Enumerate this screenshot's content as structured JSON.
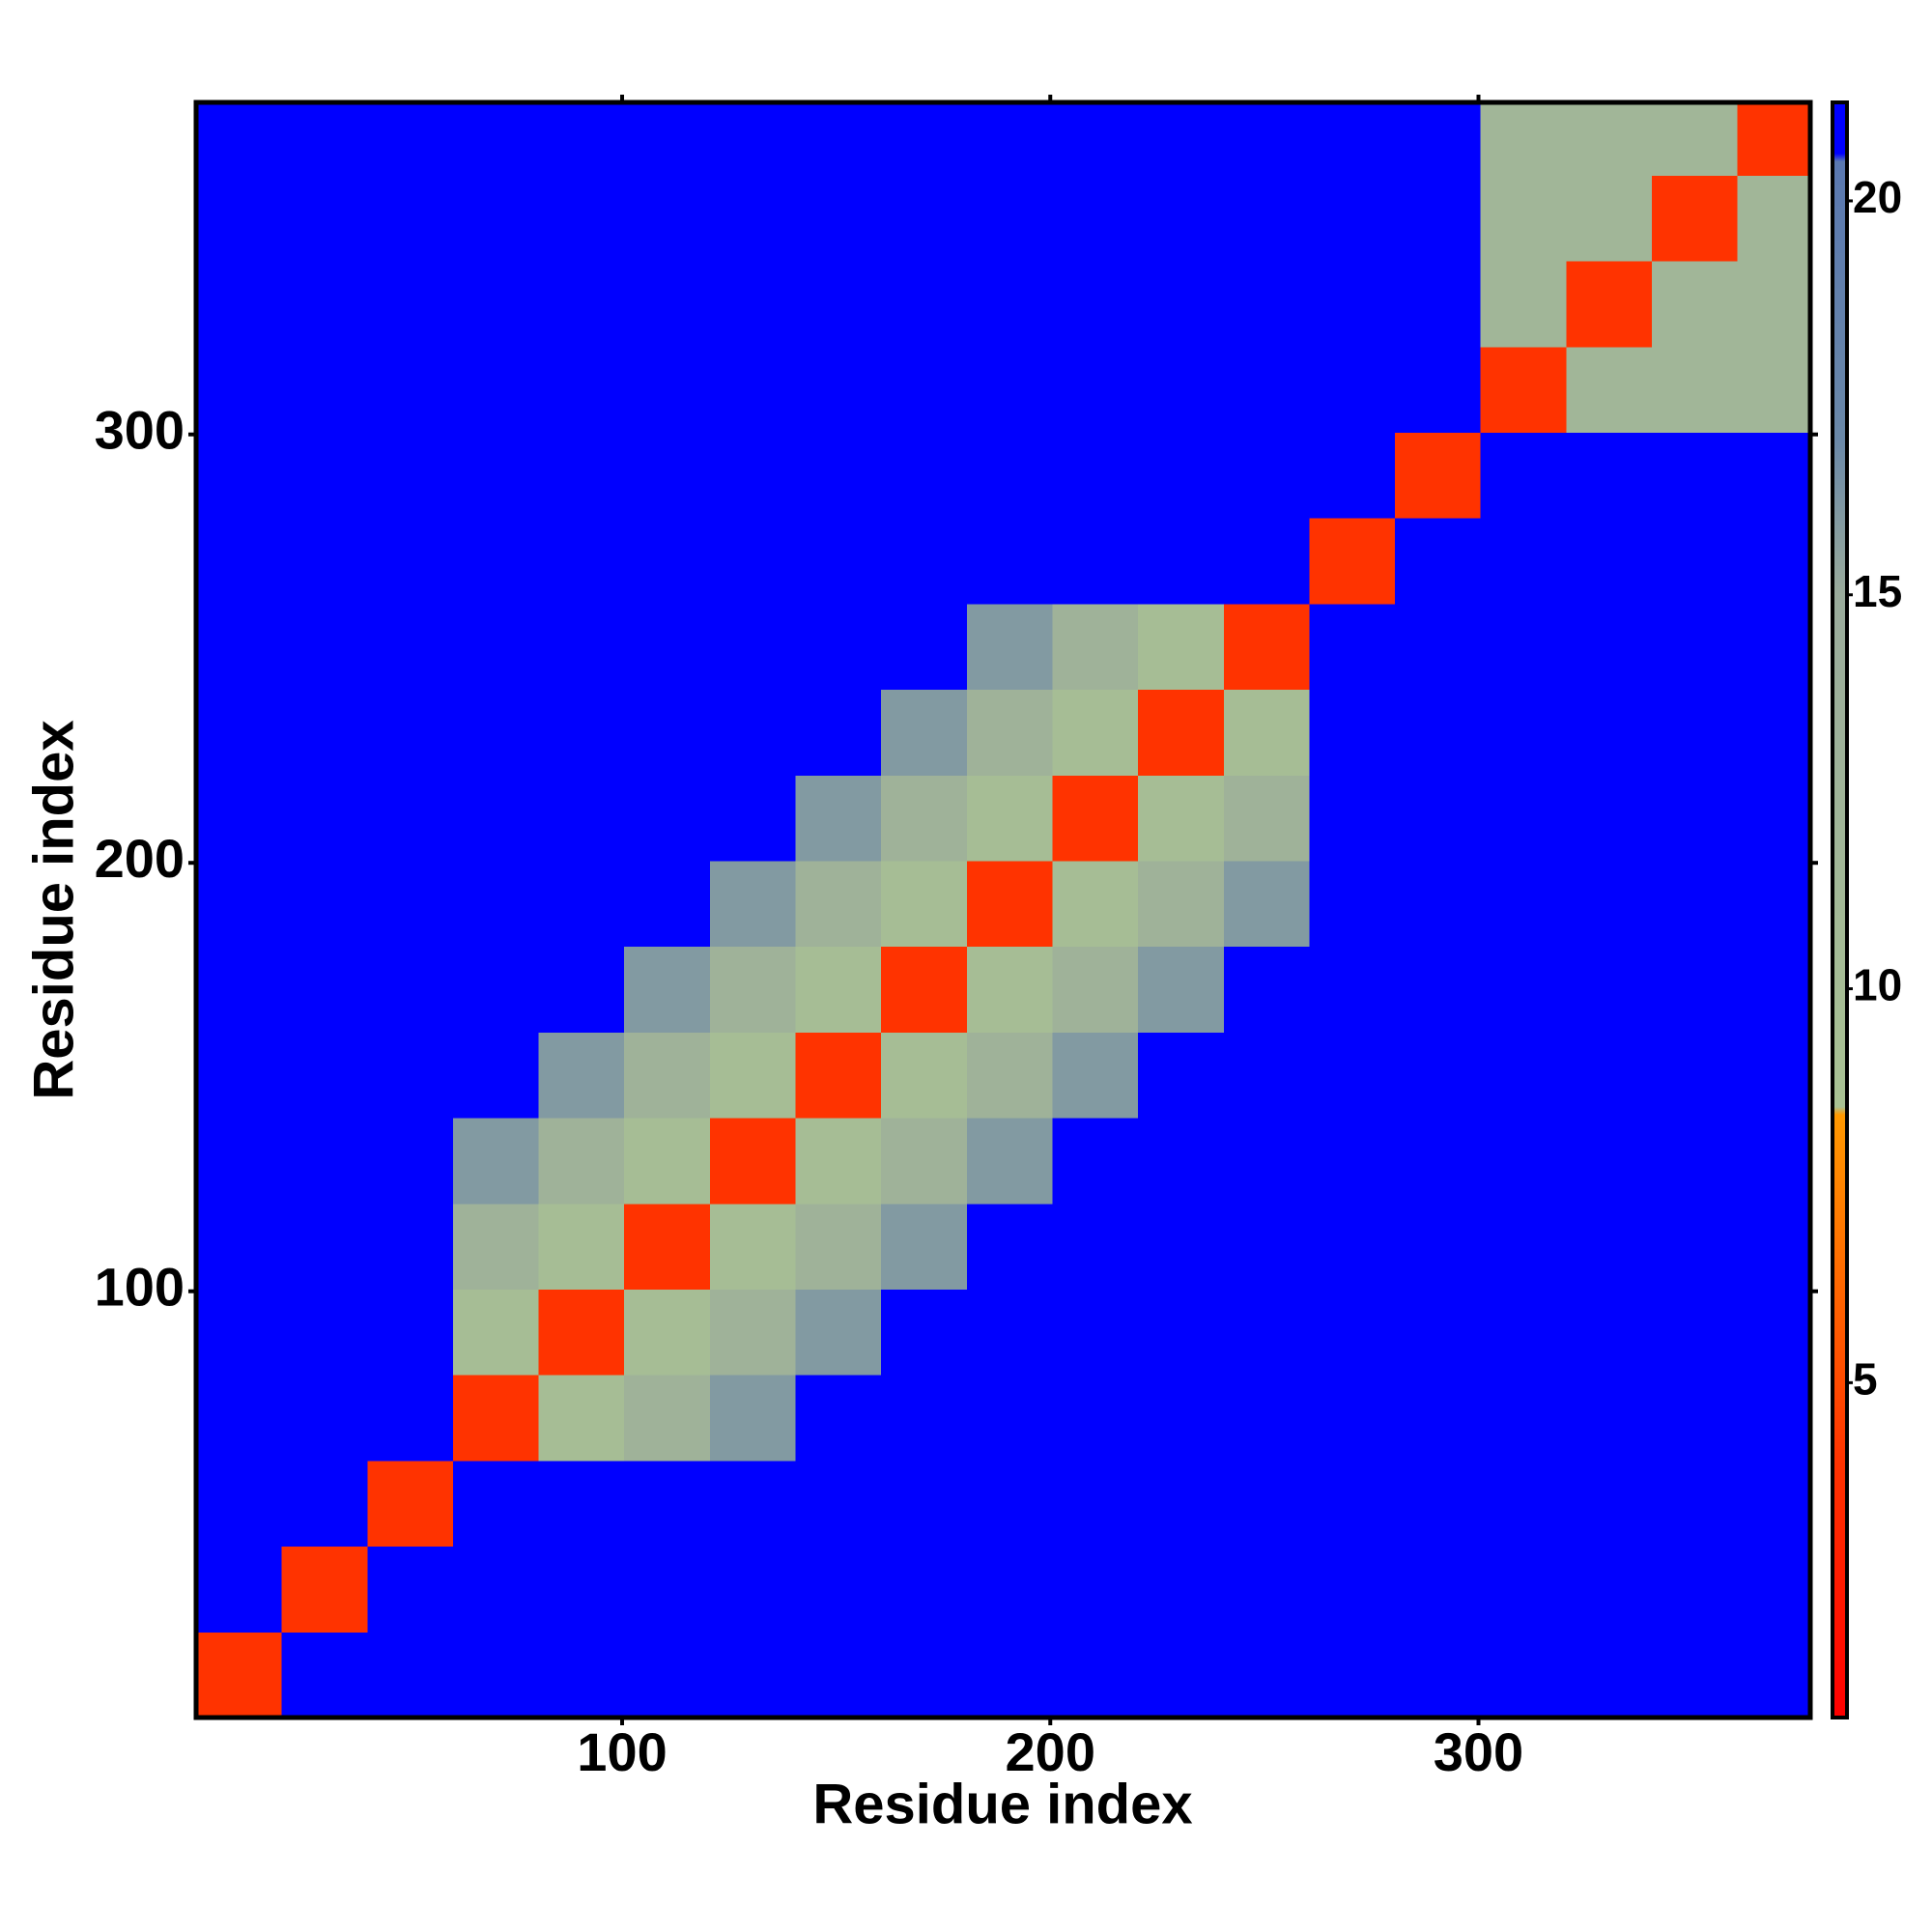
{
  "chart_data": {
    "type": "heatmap",
    "x_label": "Residue index",
    "y_label": "Residue index",
    "bins": [
      0.5,
      20.5,
      40.5,
      60.5,
      80.5,
      100.5,
      120.5,
      140.5,
      160.5,
      180.5,
      200.5,
      220.5,
      240.5,
      260.5,
      280.5,
      300.5,
      320.5,
      340.5,
      360.5,
      377.5
    ],
    "z": [
      [
        4,
        21,
        21,
        21,
        21,
        21,
        21,
        21,
        21,
        21,
        21,
        21,
        21,
        21,
        21,
        21,
        21,
        21,
        21
      ],
      [
        21,
        4,
        21,
        21,
        21,
        21,
        21,
        21,
        21,
        21,
        21,
        21,
        21,
        21,
        21,
        21,
        21,
        21,
        21
      ],
      [
        21,
        21,
        4,
        21,
        21,
        21,
        21,
        21,
        21,
        21,
        21,
        21,
        21,
        21,
        21,
        21,
        21,
        21,
        21
      ],
      [
        21,
        21,
        21,
        4,
        10,
        13,
        16,
        21,
        21,
        21,
        21,
        21,
        21,
        21,
        21,
        21,
        21,
        21,
        21
      ],
      [
        21,
        21,
        21,
        10,
        4,
        10,
        13,
        16,
        21,
        21,
        21,
        21,
        21,
        21,
        21,
        21,
        21,
        21,
        21
      ],
      [
        21,
        21,
        21,
        13,
        10,
        4,
        10,
        13,
        16,
        21,
        21,
        21,
        21,
        21,
        21,
        21,
        21,
        21,
        21
      ],
      [
        21,
        21,
        21,
        16,
        13,
        10,
        4,
        10,
        13,
        16,
        21,
        21,
        21,
        21,
        21,
        21,
        21,
        21,
        21
      ],
      [
        21,
        21,
        21,
        21,
        16,
        13,
        10,
        4,
        10,
        13,
        16,
        21,
        21,
        21,
        21,
        21,
        21,
        21,
        21
      ],
      [
        21,
        21,
        21,
        21,
        21,
        16,
        13,
        10,
        4,
        10,
        13,
        16,
        21,
        21,
        21,
        21,
        21,
        21,
        21
      ],
      [
        21,
        21,
        21,
        21,
        21,
        21,
        16,
        13,
        10,
        4,
        10,
        13,
        16,
        21,
        21,
        21,
        21,
        21,
        21
      ],
      [
        21,
        21,
        21,
        21,
        21,
        21,
        21,
        16,
        13,
        10,
        4,
        10,
        13,
        21,
        21,
        21,
        21,
        21,
        21
      ],
      [
        21,
        21,
        21,
        21,
        21,
        21,
        21,
        21,
        16,
        13,
        10,
        4,
        10,
        21,
        21,
        21,
        21,
        21,
        21
      ],
      [
        21,
        21,
        21,
        21,
        21,
        21,
        21,
        21,
        21,
        16,
        13,
        10,
        4,
        21,
        21,
        21,
        21,
        21,
        21
      ],
      [
        21,
        21,
        21,
        21,
        21,
        21,
        21,
        21,
        21,
        21,
        21,
        21,
        21,
        4,
        21,
        21,
        21,
        21,
        21
      ],
      [
        21,
        21,
        21,
        21,
        21,
        21,
        21,
        21,
        21,
        21,
        21,
        21,
        21,
        21,
        4,
        21,
        21,
        21,
        21
      ],
      [
        21,
        21,
        21,
        21,
        21,
        21,
        21,
        21,
        21,
        21,
        21,
        21,
        21,
        21,
        21,
        4,
        12,
        12,
        12
      ],
      [
        21,
        21,
        21,
        21,
        21,
        21,
        21,
        21,
        21,
        21,
        21,
        21,
        21,
        21,
        21,
        12,
        4,
        12,
        12
      ],
      [
        21,
        21,
        21,
        21,
        21,
        21,
        21,
        21,
        21,
        21,
        21,
        21,
        21,
        21,
        21,
        12,
        12,
        4,
        12
      ],
      [
        21,
        21,
        21,
        21,
        21,
        21,
        21,
        21,
        21,
        21,
        21,
        21,
        21,
        21,
        21,
        12,
        12,
        12,
        4
      ]
    ],
    "xlim": [
      0.5,
      377.5
    ],
    "ylim": [
      0.5,
      377.5
    ],
    "xticks": [
      100,
      200,
      300
    ],
    "yticks": [
      100,
      200,
      300
    ],
    "zlim": [
      0.75,
      21.25
    ],
    "zticks": [
      5,
      10,
      15,
      20
    ],
    "colorscale": [
      {
        "value": 0.75,
        "color": "#ff0000"
      },
      {
        "value": 4,
        "color": "#ff3300"
      },
      {
        "value": 8.4,
        "color": "#ff9900"
      },
      {
        "value": 8.5,
        "color": "#a9c293"
      },
      {
        "value": 15,
        "color": "#9aab9c"
      },
      {
        "value": 17,
        "color": "#6a88a8"
      },
      {
        "value": 20.5,
        "color": "#5a78b0"
      },
      {
        "value": 20.6,
        "color": "#0000ff"
      },
      {
        "value": 21.25,
        "color": "#0000ff"
      }
    ]
  }
}
